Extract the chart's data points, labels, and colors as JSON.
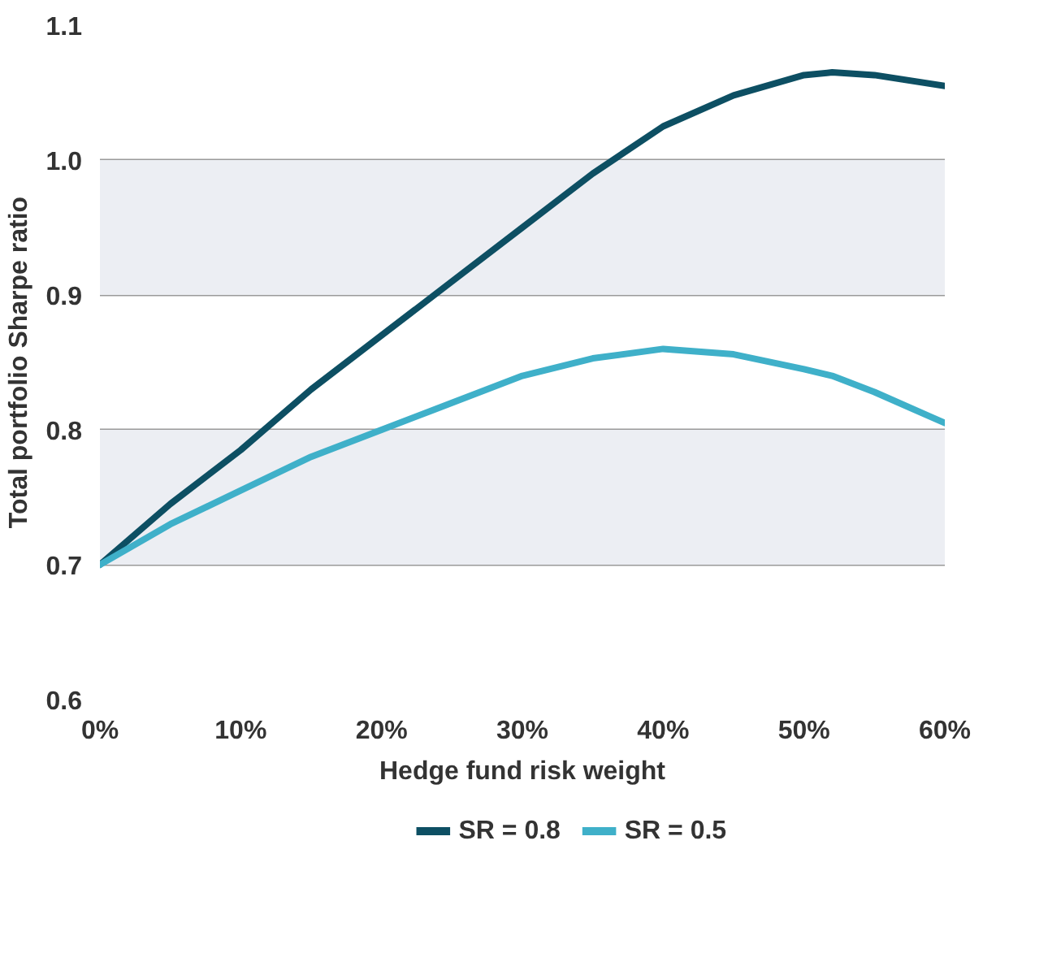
{
  "chart_data": {
    "type": "line",
    "xlabel": "Hedge fund risk weight",
    "ylabel": "Total portfolio Sharpe ratio",
    "x": [
      0,
      5,
      10,
      15,
      20,
      25,
      30,
      35,
      40,
      45,
      50,
      52,
      55,
      60
    ],
    "series": [
      {
        "name": "SR = 0.8",
        "color": "#0d4f63",
        "values": [
          0.7,
          0.745,
          0.785,
          0.83,
          0.87,
          0.91,
          0.95,
          0.99,
          1.025,
          1.048,
          1.063,
          1.065,
          1.063,
          1.055
        ]
      },
      {
        "name": "SR = 0.5",
        "color": "#3fb0c9",
        "values": [
          0.7,
          0.73,
          0.755,
          0.78,
          0.8,
          0.82,
          0.84,
          0.853,
          0.86,
          0.856,
          0.845,
          0.84,
          0.828,
          0.805
        ]
      }
    ],
    "xlim": [
      0,
      60
    ],
    "ylim": [
      0.6,
      1.1
    ],
    "xticks": [
      {
        "value": 0,
        "label": "0%"
      },
      {
        "value": 10,
        "label": "10%"
      },
      {
        "value": 20,
        "label": "20%"
      },
      {
        "value": 30,
        "label": "30%"
      },
      {
        "value": 40,
        "label": "40%"
      },
      {
        "value": 50,
        "label": "50%"
      },
      {
        "value": 60,
        "label": "60%"
      }
    ],
    "yticks": [
      0.6,
      0.7,
      0.8,
      0.9,
      {
        "value": 1,
        "label": "1.0"
      },
      1.1
    ],
    "bands": [
      {
        "axis": "y",
        "from": 0.7,
        "to": 0.8,
        "color": "#eceef3"
      },
      {
        "axis": "y",
        "from": 0.9,
        "to": 1.0,
        "color": "#eceef3"
      }
    ],
    "grid": "y",
    "legend": "bottom",
    "marker": "none",
    "line_style": "solid"
  }
}
